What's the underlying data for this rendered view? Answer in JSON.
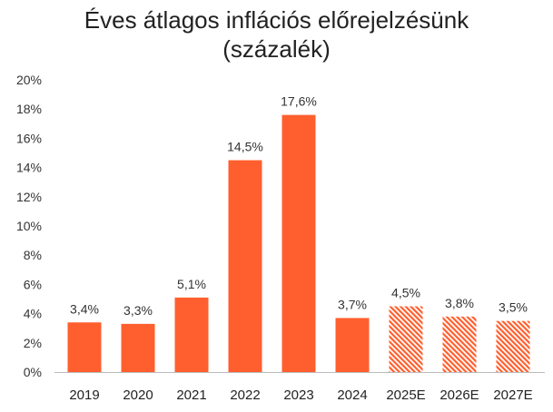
{
  "title": {
    "line1": "Éves átlagos inflációs előrejelzésünk",
    "line2": "(százalék)"
  },
  "colors": {
    "bar": "#ff5f2e",
    "forecast_hatch": "#ff5f2e",
    "axis": "#bbbbbb"
  },
  "chart_data": {
    "type": "bar",
    "title": "Éves átlagos inflációs előrejelzésünk (százalék)",
    "categories": [
      "2019",
      "2020",
      "2021",
      "2022",
      "2023",
      "2024",
      "2025E",
      "2026E",
      "2027E"
    ],
    "values": [
      3.4,
      3.3,
      5.1,
      14.5,
      17.6,
      3.7,
      4.5,
      3.8,
      3.5
    ],
    "data_labels": [
      "3,4%",
      "3,3%",
      "5,1%",
      "14,5%",
      "17,6%",
      "3,7%",
      "4,5%",
      "3,8%",
      "3,5%"
    ],
    "forecast": [
      false,
      false,
      false,
      false,
      false,
      false,
      true,
      true,
      true
    ],
    "ylim": [
      0,
      20
    ],
    "yticks": [
      0,
      2,
      4,
      6,
      8,
      10,
      12,
      14,
      16,
      18,
      20
    ],
    "ytick_labels": [
      "0%",
      "2%",
      "4%",
      "6%",
      "8%",
      "10%",
      "12%",
      "14%",
      "16%",
      "18%",
      "20%"
    ],
    "xlabel": "",
    "ylabel": "",
    "grid": false,
    "legend": "none"
  }
}
